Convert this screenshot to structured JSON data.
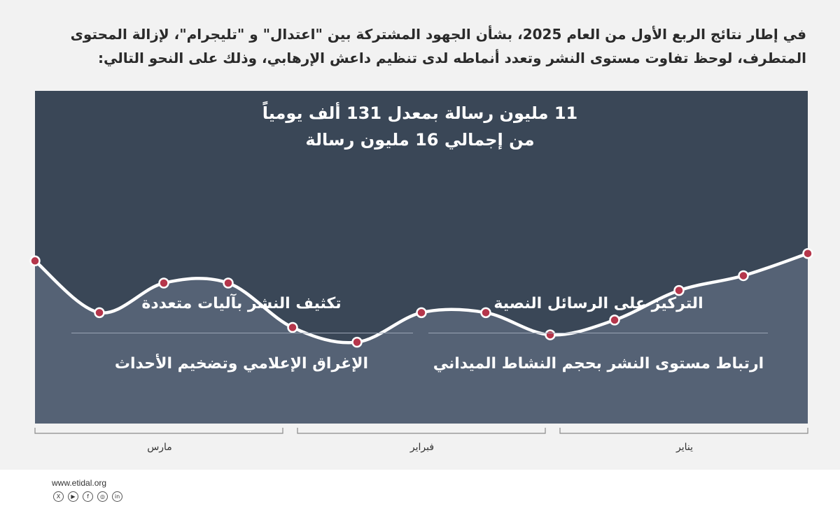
{
  "intro_text": "في إطار نتائج الربع الأول من العام 2025، بشأن الجهود المشتركة بين \"اعتدال\" و \"تليجرام\"، لإزالة المحتوى المتطرف، لوحظ تفاوت مستوى النشر وتعدد أنماطه لدى تنظيم داعش الإرهابي، وذلك على النحو التالي:",
  "headline_line1": "11 مليون رسالة بمعدل 131 ألف يومياً",
  "headline_line2": "من إجمالي 16 مليون رسالة",
  "features": {
    "top_right": "التركيز على الرسائل النصية",
    "top_left": "تكثيف النشر بآليات متعددة",
    "bottom_right": "ارتباط مستوى النشر بحجم النشاط الميداني",
    "bottom_left": "الإغراق الإعلامي وتضخيم الأحداث"
  },
  "months": {
    "right": "يناير",
    "middle": "فبراير",
    "left": "مارس"
  },
  "footer": {
    "url": "www.etidal.org",
    "social_icons": [
      "x-icon",
      "youtube-icon",
      "facebook-icon",
      "instagram-icon",
      "linkedin-icon"
    ],
    "social_glyphs": [
      "X",
      "▶",
      "f",
      "◎",
      "in"
    ]
  },
  "colors": {
    "panel_dark": "#3a4757",
    "area_fill": "#556275",
    "line": "#ffffff",
    "marker": "#b5364b",
    "background": "#f2f2f2"
  },
  "chart_data": {
    "type": "area",
    "values": [
      2.2,
      1.5,
      1.9,
      1.9,
      1.3,
      1.1,
      1.5,
      1.5,
      1.2,
      1.4,
      1.8,
      2.0,
      2.3
    ],
    "ylim": [
      0,
      4.5
    ],
    "grid": false,
    "legend": "none"
  }
}
